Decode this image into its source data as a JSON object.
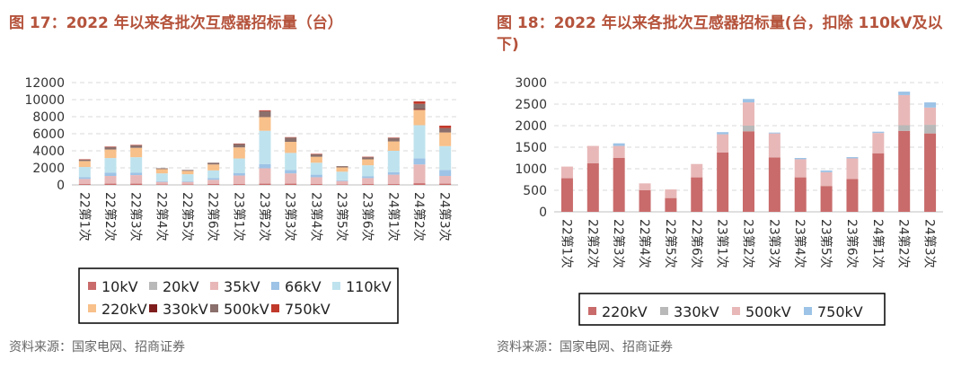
{
  "figure1": {
    "title": "图 17：2022 年以来各批次互感器招标量（台）",
    "source": "资料来源：国家电网、招商证券",
    "chart_data": {
      "type": "bar",
      "stacked": true,
      "title": "图 17：2022 年以来各批次互感器招标量（台）",
      "categories": [
        "22第1次",
        "22第2次",
        "22第3次",
        "22第4次",
        "22第5次",
        "22第6次",
        "23第1次",
        "23第2次",
        "23第3次",
        "23第4次",
        "23第5次",
        "23第6次",
        "24第1次",
        "24第2次",
        "24第3次"
      ],
      "ylim": [
        0,
        12000
      ],
      "yticks": [
        0,
        2000,
        4000,
        6000,
        8000,
        10000,
        12000
      ],
      "grid": true,
      "legend_position": "bottom",
      "series": [
        {
          "name": "10kV",
          "color": "#c96b6b",
          "values": [
            100,
            150,
            150,
            50,
            50,
            100,
            100,
            150,
            150,
            100,
            50,
            100,
            100,
            200,
            150
          ]
        },
        {
          "name": "20kV",
          "color": "#b9b9b9",
          "values": [
            0,
            0,
            0,
            0,
            0,
            0,
            0,
            0,
            0,
            0,
            0,
            0,
            0,
            0,
            0
          ]
        },
        {
          "name": "35kV",
          "color": "#e8b8b8",
          "values": [
            600,
            900,
            1000,
            300,
            300,
            500,
            1000,
            1800,
            1200,
            800,
            400,
            700,
            1100,
            2200,
            900
          ]
        },
        {
          "name": "66kV",
          "color": "#9dc3e6",
          "values": [
            200,
            400,
            300,
            100,
            100,
            200,
            300,
            500,
            400,
            300,
            100,
            200,
            300,
            700,
            700
          ]
        },
        {
          "name": "110kV",
          "color": "#bfe3ee",
          "values": [
            1200,
            1700,
            1800,
            900,
            800,
            900,
            1700,
            3900,
            2000,
            1400,
            1000,
            1300,
            2500,
            3900,
            2800
          ]
        },
        {
          "name": "220kV",
          "color": "#f8c08a",
          "values": [
            700,
            1000,
            1100,
            500,
            400,
            700,
            1300,
            1600,
            1300,
            700,
            500,
            700,
            1100,
            1800,
            1600
          ]
        },
        {
          "name": "330kV",
          "color": "#7f1d1d",
          "values": [
            0,
            0,
            0,
            0,
            0,
            0,
            0,
            0,
            0,
            0,
            0,
            0,
            0,
            100,
            0
          ]
        },
        {
          "name": "500kV",
          "color": "#8a6f6c",
          "values": [
            150,
            300,
            300,
            100,
            100,
            200,
            400,
            700,
            500,
            300,
            150,
            250,
            400,
            600,
            500
          ]
        },
        {
          "name": "750kV",
          "color": "#c0392b",
          "values": [
            50,
            50,
            50,
            0,
            0,
            0,
            50,
            100,
            50,
            50,
            0,
            50,
            50,
            300,
            300
          ]
        }
      ]
    }
  },
  "figure2": {
    "title": "图 18：2022 年以来各批次互感器招标量(台，扣除 110kV及以下)",
    "source": "资料来源：国家电网、招商证券",
    "chart_data": {
      "type": "bar",
      "stacked": true,
      "title": "图 18：2022 年以来各批次互感器招标量(台，扣除 110kV及以下)",
      "categories": [
        "22第1次",
        "22第2次",
        "22第3次",
        "22第4次",
        "22第5次",
        "22第6次",
        "23第1次",
        "23第2次",
        "23第3次",
        "23第4次",
        "23第5次",
        "23第6次",
        "24第1次",
        "24第2次",
        "24第3次"
      ],
      "ylim": [
        0,
        3000
      ],
      "yticks": [
        0,
        500,
        1000,
        1500,
        2000,
        2500,
        3000
      ],
      "grid": true,
      "legend_position": "bottom",
      "series": [
        {
          "name": "220kV",
          "color": "#c96b6b",
          "values": [
            780,
            1130,
            1250,
            500,
            320,
            800,
            1380,
            1870,
            1260,
            800,
            600,
            760,
            1360,
            1880,
            1820
          ]
        },
        {
          "name": "330kV",
          "color": "#b9b9b9",
          "values": [
            0,
            0,
            0,
            0,
            0,
            0,
            0,
            130,
            0,
            0,
            0,
            0,
            0,
            130,
            200
          ]
        },
        {
          "name": "500kV",
          "color": "#e8b8b8",
          "values": [
            270,
            400,
            280,
            160,
            200,
            310,
            420,
            540,
            560,
            420,
            320,
            480,
            470,
            700,
            400
          ]
        },
        {
          "name": "750kV",
          "color": "#9dc3e6",
          "values": [
            0,
            0,
            60,
            0,
            0,
            0,
            50,
            80,
            20,
            30,
            40,
            30,
            30,
            80,
            120
          ]
        }
      ]
    }
  }
}
